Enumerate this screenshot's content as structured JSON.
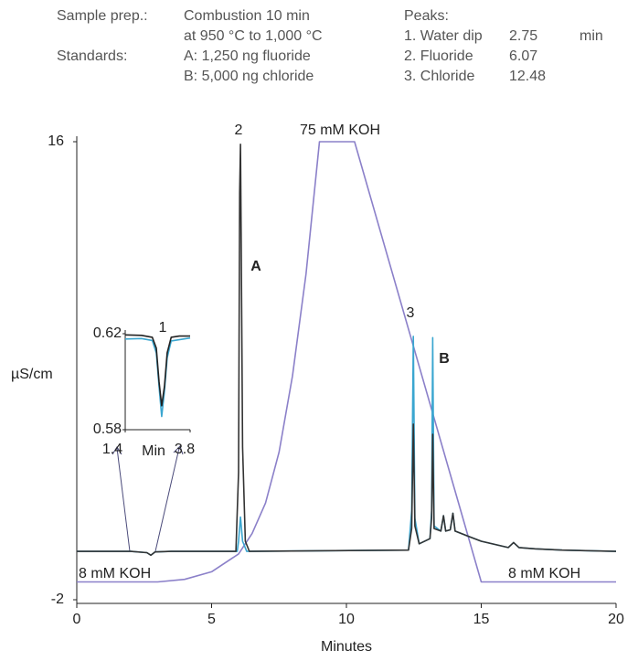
{
  "header": {
    "sample_label": "Sample prep.:",
    "sample_lines": [
      "Combustion 10 min",
      "at 950 °C to 1,000 °C"
    ],
    "standards_label": "Standards:",
    "standards_lines": [
      "A: 1,250 ng fluoride",
      "B: 5,000 ng chloride"
    ],
    "peaks_title": "Peaks:",
    "peaks": [
      {
        "name": "1. Water dip",
        "time": 2.75
      },
      {
        "name": "2. Fluoride",
        "time": 6.07
      },
      {
        "name": "3. Chloride",
        "time": 12.48
      }
    ],
    "time_unit": "min"
  },
  "chart_data": {
    "type": "line",
    "xlabel": "Minutes",
    "ylabel": "µS/cm",
    "xlim": [
      0,
      20
    ],
    "xticks": [
      0,
      5,
      10,
      15,
      20
    ],
    "ylim": [
      -2,
      16
    ],
    "yticks": [
      -2,
      16
    ],
    "annotations": [
      "2",
      "75 mM KOH",
      "A",
      "3",
      "B",
      "8 mM KOH",
      "8 mM KOH"
    ],
    "series": [
      {
        "color": "#8b80c9",
        "x": [
          0,
          3,
          4,
          5,
          6,
          6.5,
          7,
          7.5,
          8,
          8.5,
          9,
          10.3,
          15,
          20
        ],
        "values": [
          -1.3,
          -1.3,
          -1.2,
          -0.9,
          -0.2,
          0.6,
          1.8,
          3.8,
          6.8,
          10.8,
          16,
          16,
          -1.3,
          -1.3
        ]
      },
      {
        "color": "#3aa6d0",
        "x": [
          0,
          2,
          2.6,
          2.75,
          2.9,
          3.5,
          5.95,
          6.0,
          6.07,
          6.15,
          6.3,
          12.3,
          12.42,
          12.48,
          12.54,
          12.7,
          13.1,
          13.16,
          13.2,
          13.25,
          13.5,
          13.6,
          13.68,
          13.85,
          13.95,
          14.03,
          14.5,
          15,
          16,
          16.2,
          16.4,
          17,
          18,
          20
        ],
        "values": [
          -0.1,
          -0.1,
          -0.15,
          -0.25,
          -0.12,
          -0.1,
          -0.1,
          0.3,
          1.25,
          0.3,
          -0.1,
          -0.05,
          1.5,
          8.35,
          1.2,
          0.2,
          0.4,
          1.5,
          8.3,
          0.9,
          0.7,
          1.3,
          0.7,
          0.75,
          1.4,
          0.7,
          0.5,
          0.3,
          0.05,
          0.25,
          0.05,
          0,
          -0.05,
          -0.1
        ]
      },
      {
        "color": "#333333",
        "x": [
          0,
          2,
          2.6,
          2.75,
          2.9,
          3.5,
          5.9,
          6.0,
          6.04,
          6.07,
          6.1,
          6.15,
          6.25,
          6.4,
          12.3,
          12.42,
          12.48,
          12.54,
          12.7,
          13.1,
          13.16,
          13.2,
          13.25,
          13.5,
          13.6,
          13.68,
          13.85,
          13.95,
          14.03,
          14.5,
          15,
          16,
          16.2,
          16.4,
          17,
          18,
          20
        ],
        "values": [
          -0.1,
          -0.1,
          -0.15,
          -0.25,
          -0.12,
          -0.1,
          -0.1,
          3,
          14,
          15.9,
          12,
          4,
          0.3,
          -0.1,
          -0.05,
          0.8,
          4.9,
          0.9,
          0.2,
          0.4,
          1.2,
          4.5,
          0.8,
          0.7,
          1.3,
          0.7,
          0.75,
          1.4,
          0.7,
          0.5,
          0.3,
          0.05,
          0.25,
          0.05,
          0,
          -0.05,
          -0.1
        ]
      }
    ],
    "inset": {
      "xlabel": "Min",
      "xlim": [
        1.4,
        3.8
      ],
      "xticks": [
        1.4,
        3.8
      ],
      "ylim": [
        0.58,
        0.62
      ],
      "yticks": [
        0.62,
        0.58
      ],
      "annotation": "1",
      "series": [
        {
          "color": "#3aa6d0",
          "x": [
            1.4,
            2.0,
            2.4,
            2.55,
            2.65,
            2.75,
            2.85,
            2.95,
            3.1,
            3.8
          ],
          "values": [
            0.6178,
            0.618,
            0.6172,
            0.612,
            0.598,
            0.5855,
            0.596,
            0.61,
            0.617,
            0.6182
          ]
        },
        {
          "color": "#222222",
          "x": [
            1.4,
            2.0,
            2.4,
            2.55,
            2.65,
            2.75,
            2.85,
            2.95,
            3.1,
            3.4,
            3.8
          ],
          "values": [
            0.6195,
            0.6193,
            0.6185,
            0.614,
            0.6,
            0.59,
            0.598,
            0.612,
            0.6185,
            0.619,
            0.619
          ]
        }
      ]
    }
  }
}
